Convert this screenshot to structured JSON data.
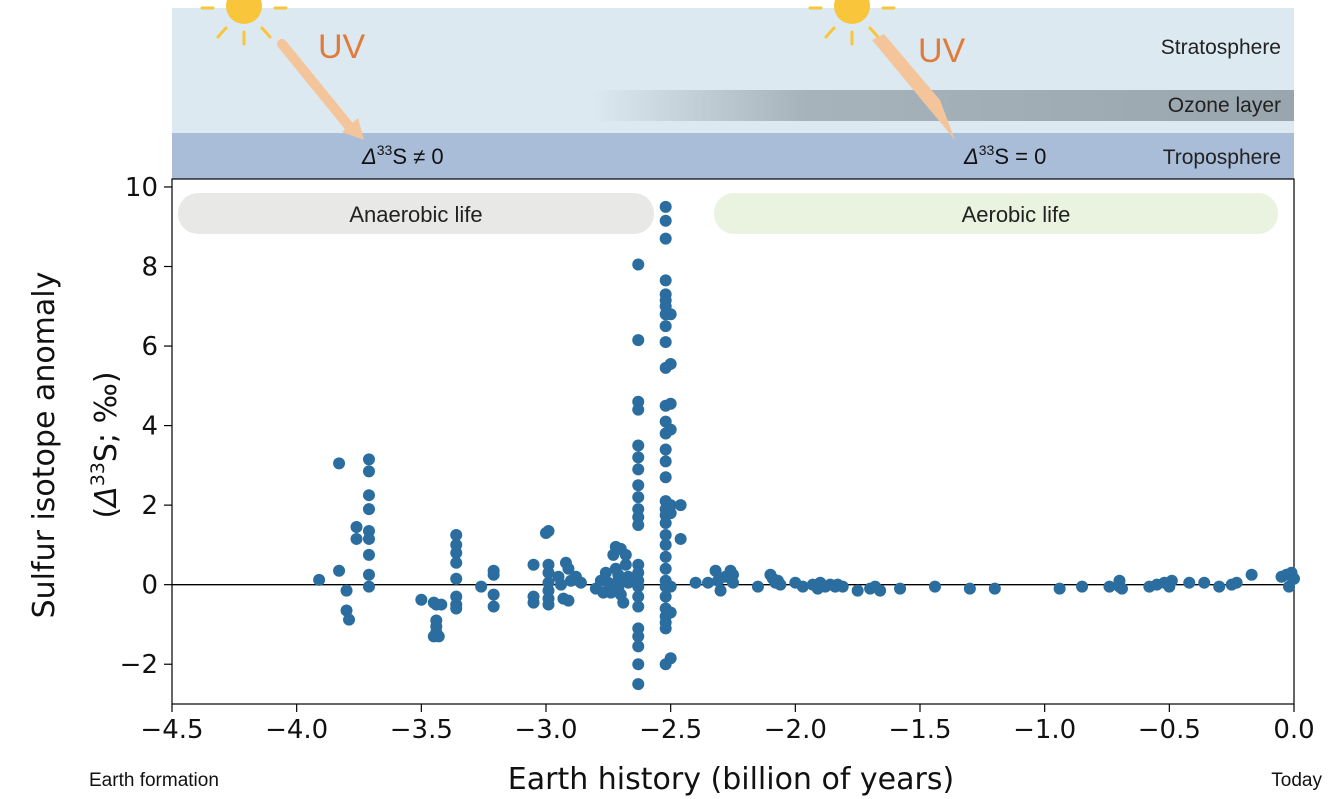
{
  "colors": {
    "stratosphere": "#dce9f1",
    "troposphere": "#a9bdd8",
    "ozone": "#9aa6ae",
    "uv_text": "#e07b3a",
    "uv_ray": "#f4c49a",
    "sun": "#f8c53b",
    "anaerobic_box": "#e8e8e6",
    "aerobic_box": "#eaf2e0",
    "points": "#2a6d9e",
    "zero_line": "#000000"
  },
  "atmosphere": {
    "stratosphere_label": "Stratosphere",
    "ozone_label": "Ozone layer",
    "troposphere_label": "Troposphere",
    "uv_left": "UV",
    "uv_right": "UV",
    "left_condition": {
      "delta": "Δ",
      "sup": "33",
      "rest": "S ≠ 0"
    },
    "right_condition": {
      "delta": "Δ",
      "sup": "33",
      "rest": "S = 0"
    }
  },
  "periods": {
    "anaerobic": "Anaerobic life",
    "aerobic": "Aerobic life"
  },
  "footer": {
    "left": "Earth formation",
    "right": "Today"
  },
  "chart_data": {
    "type": "scatter",
    "xlabel": "Earth history (billion of years)",
    "ylabel_line1": "Sulfur isotope anomaly",
    "ylabel_line2": {
      "open": "(",
      "delta": "Δ",
      "sup": "33",
      "rest": "S; ‰)"
    },
    "xlim": [
      -4.5,
      0.0
    ],
    "ylim": [
      -3.0,
      10.2
    ],
    "xticks": [
      -4.5,
      -4.0,
      -3.5,
      -3.0,
      -2.5,
      -2.0,
      -1.5,
      -1.0,
      -0.5,
      0.0
    ],
    "xtick_labels": [
      "−4.5",
      "−4.0",
      "−3.5",
      "−3.0",
      "−2.5",
      "−2.0",
      "−1.5",
      "−1.0",
      "−0.5",
      "0.0"
    ],
    "yticks": [
      -2,
      0,
      2,
      4,
      6,
      8,
      10
    ],
    "ytick_labels": [
      "−2",
      "0",
      "2",
      "4",
      "6",
      "8",
      "10"
    ],
    "reference_line_y": 0,
    "points": [
      [
        -3.91,
        0.12
      ],
      [
        -3.83,
        3.05
      ],
      [
        -3.83,
        0.35
      ],
      [
        -3.8,
        -0.15
      ],
      [
        -3.8,
        -0.65
      ],
      [
        -3.79,
        -0.88
      ],
      [
        -3.76,
        1.45
      ],
      [
        -3.76,
        1.15
      ],
      [
        -3.71,
        3.15
      ],
      [
        -3.71,
        2.85
      ],
      [
        -3.71,
        2.25
      ],
      [
        -3.71,
        1.9
      ],
      [
        -3.71,
        1.35
      ],
      [
        -3.71,
        1.15
      ],
      [
        -3.71,
        0.75
      ],
      [
        -3.71,
        0.25
      ],
      [
        -3.71,
        -0.05
      ],
      [
        -3.5,
        -0.38
      ],
      [
        -3.45,
        -0.45
      ],
      [
        -3.44,
        -0.5
      ],
      [
        -3.44,
        -0.9
      ],
      [
        -3.44,
        -1.05
      ],
      [
        -3.44,
        -1.2
      ],
      [
        -3.43,
        -1.3
      ],
      [
        -3.45,
        -1.3
      ],
      [
        -3.42,
        -0.5
      ],
      [
        -3.36,
        1.25
      ],
      [
        -3.36,
        1.0
      ],
      [
        -3.36,
        0.8
      ],
      [
        -3.36,
        0.55
      ],
      [
        -3.36,
        0.15
      ],
      [
        -3.36,
        -0.5
      ],
      [
        -3.36,
        -0.6
      ],
      [
        -3.36,
        -0.3
      ],
      [
        -3.26,
        -0.05
      ],
      [
        -3.21,
        0.35
      ],
      [
        -3.21,
        0.25
      ],
      [
        -3.21,
        -0.25
      ],
      [
        -3.21,
        -0.55
      ],
      [
        -3.05,
        0.5
      ],
      [
        -3.05,
        -0.3
      ],
      [
        -3.05,
        -0.45
      ],
      [
        -3.0,
        1.3
      ],
      [
        -2.99,
        1.35
      ],
      [
        -2.99,
        0.5
      ],
      [
        -2.99,
        0.3
      ],
      [
        -2.99,
        0.05
      ],
      [
        -2.99,
        -0.15
      ],
      [
        -2.99,
        -0.35
      ],
      [
        -2.99,
        -0.5
      ],
      [
        -2.95,
        0.2
      ],
      [
        -2.94,
        0.0
      ],
      [
        -2.93,
        -0.35
      ],
      [
        -2.92,
        0.55
      ],
      [
        -2.91,
        0.4
      ],
      [
        -2.91,
        -0.4
      ],
      [
        -2.9,
        0.1
      ],
      [
        -2.88,
        0.2
      ],
      [
        -2.86,
        0.05
      ],
      [
        -2.8,
        -0.1
      ],
      [
        -2.78,
        0.1
      ],
      [
        -2.77,
        -0.2
      ],
      [
        -2.76,
        0.3
      ],
      [
        -2.75,
        0.05
      ],
      [
        -2.74,
        -0.2
      ],
      [
        -2.73,
        0.75
      ],
      [
        -2.72,
        0.95
      ],
      [
        -2.72,
        0.4
      ],
      [
        -2.71,
        0.25
      ],
      [
        -2.71,
        0.1
      ],
      [
        -2.71,
        -0.1
      ],
      [
        -2.7,
        -0.25
      ],
      [
        -2.7,
        0.9
      ],
      [
        -2.69,
        -0.45
      ],
      [
        -2.68,
        0.5
      ],
      [
        -2.68,
        0.75
      ],
      [
        -2.67,
        0.05
      ],
      [
        -2.67,
        0.2
      ],
      [
        -2.63,
        8.05
      ],
      [
        -2.63,
        6.15
      ],
      [
        -2.63,
        4.6
      ],
      [
        -2.63,
        4.4
      ],
      [
        -2.63,
        3.5
      ],
      [
        -2.63,
        3.2
      ],
      [
        -2.63,
        2.9
      ],
      [
        -2.63,
        2.5
      ],
      [
        -2.63,
        2.2
      ],
      [
        -2.63,
        1.9
      ],
      [
        -2.63,
        1.7
      ],
      [
        -2.63,
        1.5
      ],
      [
        -2.63,
        0.5
      ],
      [
        -2.63,
        0.3
      ],
      [
        -2.63,
        0.1
      ],
      [
        -2.63,
        -0.05
      ],
      [
        -2.63,
        -0.3
      ],
      [
        -2.63,
        -0.55
      ],
      [
        -2.63,
        -1.1
      ],
      [
        -2.63,
        -1.3
      ],
      [
        -2.63,
        -1.55
      ],
      [
        -2.63,
        -2.0
      ],
      [
        -2.63,
        -2.5
      ],
      [
        -2.52,
        9.5
      ],
      [
        -2.52,
        9.15
      ],
      [
        -2.52,
        8.7
      ],
      [
        -2.52,
        7.65
      ],
      [
        -2.52,
        7.3
      ],
      [
        -2.52,
        7.15
      ],
      [
        -2.52,
        7.0
      ],
      [
        -2.52,
        6.8
      ],
      [
        -2.52,
        6.5
      ],
      [
        -2.52,
        6.1
      ],
      [
        -2.52,
        5.45
      ],
      [
        -2.52,
        4.5
      ],
      [
        -2.52,
        4.1
      ],
      [
        -2.52,
        3.8
      ],
      [
        -2.52,
        3.4
      ],
      [
        -2.52,
        3.1
      ],
      [
        -2.52,
        2.7
      ],
      [
        -2.52,
        2.1
      ],
      [
        -2.52,
        1.9
      ],
      [
        -2.52,
        1.75
      ],
      [
        -2.52,
        1.55
      ],
      [
        -2.52,
        1.25
      ],
      [
        -2.52,
        1.0
      ],
      [
        -2.52,
        0.7
      ],
      [
        -2.52,
        0.4
      ],
      [
        -2.52,
        0.1
      ],
      [
        -2.52,
        -0.05
      ],
      [
        -2.52,
        -0.3
      ],
      [
        -2.52,
        -0.6
      ],
      [
        -2.52,
        -0.8
      ],
      [
        -2.52,
        -0.95
      ],
      [
        -2.52,
        -1.1
      ],
      [
        -2.52,
        -2.0
      ],
      [
        -2.5,
        6.8
      ],
      [
        -2.5,
        5.55
      ],
      [
        -2.5,
        4.55
      ],
      [
        -2.5,
        3.9
      ],
      [
        -2.5,
        2.0
      ],
      [
        -2.5,
        1.8
      ],
      [
        -2.5,
        -0.05
      ],
      [
        -2.5,
        -0.7
      ],
      [
        -2.5,
        -1.85
      ],
      [
        -2.46,
        2.0
      ],
      [
        -2.46,
        1.15
      ],
      [
        -2.4,
        0.05
      ],
      [
        -2.35,
        0.05
      ],
      [
        -2.32,
        0.35
      ],
      [
        -2.31,
        0.1
      ],
      [
        -2.3,
        -0.15
      ],
      [
        -2.28,
        0.2
      ],
      [
        -2.26,
        0.35
      ],
      [
        -2.25,
        0.25
      ],
      [
        -2.25,
        0.05
      ],
      [
        -2.15,
        -0.05
      ],
      [
        -2.1,
        0.25
      ],
      [
        -2.09,
        0.15
      ],
      [
        -2.08,
        0.05
      ],
      [
        -2.07,
        0.1
      ],
      [
        -2.06,
        0.0
      ],
      [
        -2.0,
        0.05
      ],
      [
        -1.97,
        -0.05
      ],
      [
        -1.93,
        0.0
      ],
      [
        -1.91,
        -0.1
      ],
      [
        -1.9,
        0.05
      ],
      [
        -1.88,
        -0.05
      ],
      [
        -1.86,
        0.0
      ],
      [
        -1.84,
        -0.05
      ],
      [
        -1.83,
        0.0
      ],
      [
        -1.81,
        -0.05
      ],
      [
        -1.75,
        -0.15
      ],
      [
        -1.7,
        -0.1
      ],
      [
        -1.68,
        -0.05
      ],
      [
        -1.66,
        -0.15
      ],
      [
        -1.58,
        -0.1
      ],
      [
        -1.44,
        -0.05
      ],
      [
        -1.3,
        -0.1
      ],
      [
        -1.2,
        -0.1
      ],
      [
        -0.94,
        -0.1
      ],
      [
        -0.85,
        -0.05
      ],
      [
        -0.74,
        -0.05
      ],
      [
        -0.7,
        0.1
      ],
      [
        -0.7,
        -0.05
      ],
      [
        -0.69,
        -0.1
      ],
      [
        -0.58,
        -0.05
      ],
      [
        -0.55,
        0.0
      ],
      [
        -0.52,
        0.05
      ],
      [
        -0.5,
        -0.05
      ],
      [
        -0.49,
        0.1
      ],
      [
        -0.42,
        0.05
      ],
      [
        -0.36,
        0.05
      ],
      [
        -0.3,
        -0.05
      ],
      [
        -0.25,
        0.0
      ],
      [
        -0.23,
        0.05
      ],
      [
        -0.17,
        0.25
      ],
      [
        -0.05,
        0.2
      ],
      [
        -0.03,
        0.25
      ],
      [
        -0.02,
        -0.05
      ],
      [
        -0.01,
        0.3
      ],
      [
        0.0,
        0.15
      ]
    ]
  }
}
